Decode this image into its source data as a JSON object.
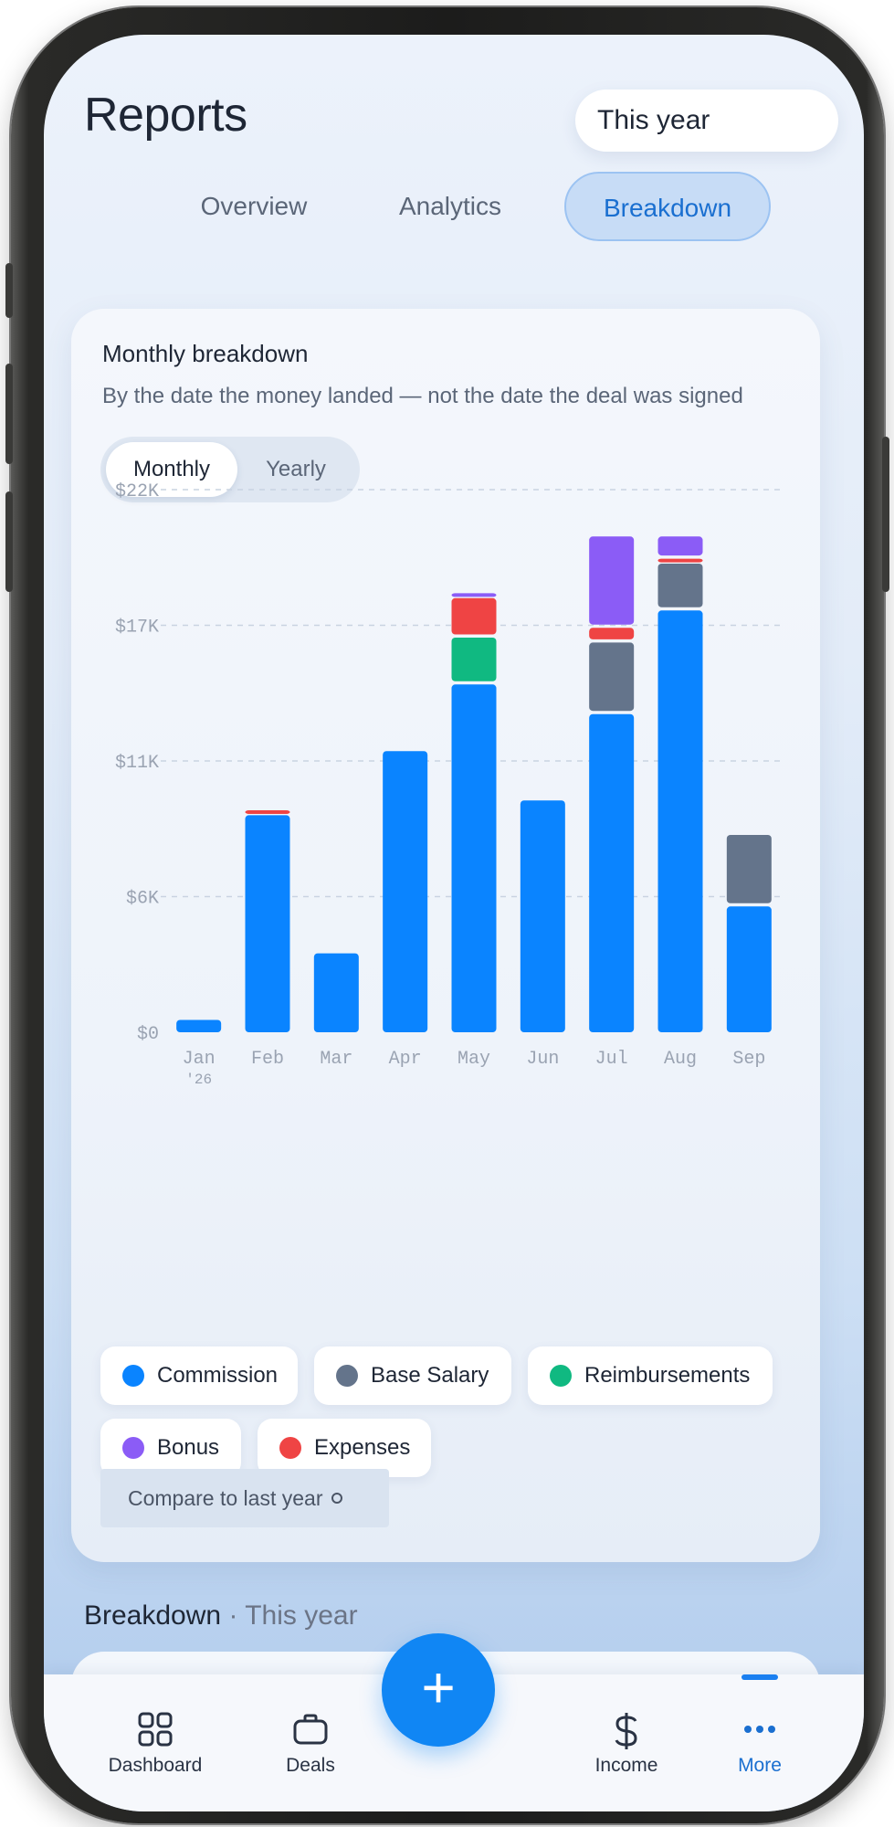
{
  "header": {
    "title": "Reports",
    "period": "This year"
  },
  "tabs": [
    {
      "label": "Overview",
      "active": false
    },
    {
      "label": "Analytics",
      "active": false
    },
    {
      "label": "Breakdown",
      "active": true
    }
  ],
  "card": {
    "title": "Monthly breakdown",
    "subtitle": "By the date the money landed — not the date the deal was signed",
    "segments": [
      {
        "label": "Monthly",
        "active": true
      },
      {
        "label": "Yearly",
        "active": false
      }
    ],
    "compare_label": "Compare to last year"
  },
  "chart_data": {
    "type": "bar",
    "stacked": true,
    "categories": [
      "Jan",
      "Feb",
      "Mar",
      "Apr",
      "May",
      "Jun",
      "Jul",
      "Aug",
      "Sep"
    ],
    "first_category_year_label": "'26",
    "y_ticks": [
      "$22K",
      "$17K",
      "$11K",
      "$6K",
      "$0"
    ],
    "y_tick_values": [
      22000,
      16500,
      11000,
      5500,
      0
    ],
    "ylim": [
      0,
      22000
    ],
    "grid": true,
    "series": [
      {
        "name": "Commission",
        "color": "#0a84ff",
        "values": [
          500,
          8800,
          3200,
          11400,
          14100,
          9400,
          12900,
          17100,
          5100
        ]
      },
      {
        "name": "Base Salary",
        "color": "#64748b",
        "values": [
          0,
          0,
          0,
          0,
          0,
          0,
          2900,
          1900,
          2900
        ]
      },
      {
        "name": "Reimbursements",
        "color": "#10b981",
        "values": [
          0,
          0,
          0,
          0,
          1900,
          0,
          0,
          0,
          0
        ]
      },
      {
        "name": "Expenses",
        "color": "#ef4444",
        "values": [
          0,
          200,
          0,
          0,
          1600,
          0,
          600,
          200,
          0
        ]
      },
      {
        "name": "Bonus",
        "color": "#8b5cf6",
        "values": [
          0,
          0,
          0,
          0,
          200,
          0,
          3700,
          900,
          0
        ]
      }
    ]
  },
  "legend": [
    {
      "label": "Commission",
      "color": "#0a84ff"
    },
    {
      "label": "Base Salary",
      "color": "#64748b"
    },
    {
      "label": "Reimbursements",
      "color": "#10b981"
    },
    {
      "label": "Bonus",
      "color": "#8b5cf6"
    },
    {
      "label": "Expenses",
      "color": "#ef4444"
    }
  ],
  "section": {
    "title": "Breakdown",
    "separator": "·",
    "period": "This year"
  },
  "nav": {
    "items": [
      {
        "label": "Dashboard",
        "icon": "grid-icon",
        "active": false
      },
      {
        "label": "Deals",
        "icon": "briefcase-icon",
        "active": false
      },
      {
        "label": "Income",
        "icon": "dollar-icon",
        "active": false
      },
      {
        "label": "More",
        "icon": "more-icon",
        "active": true
      }
    ],
    "fab_icon": "plus-icon",
    "fab_glyph": "+"
  }
}
